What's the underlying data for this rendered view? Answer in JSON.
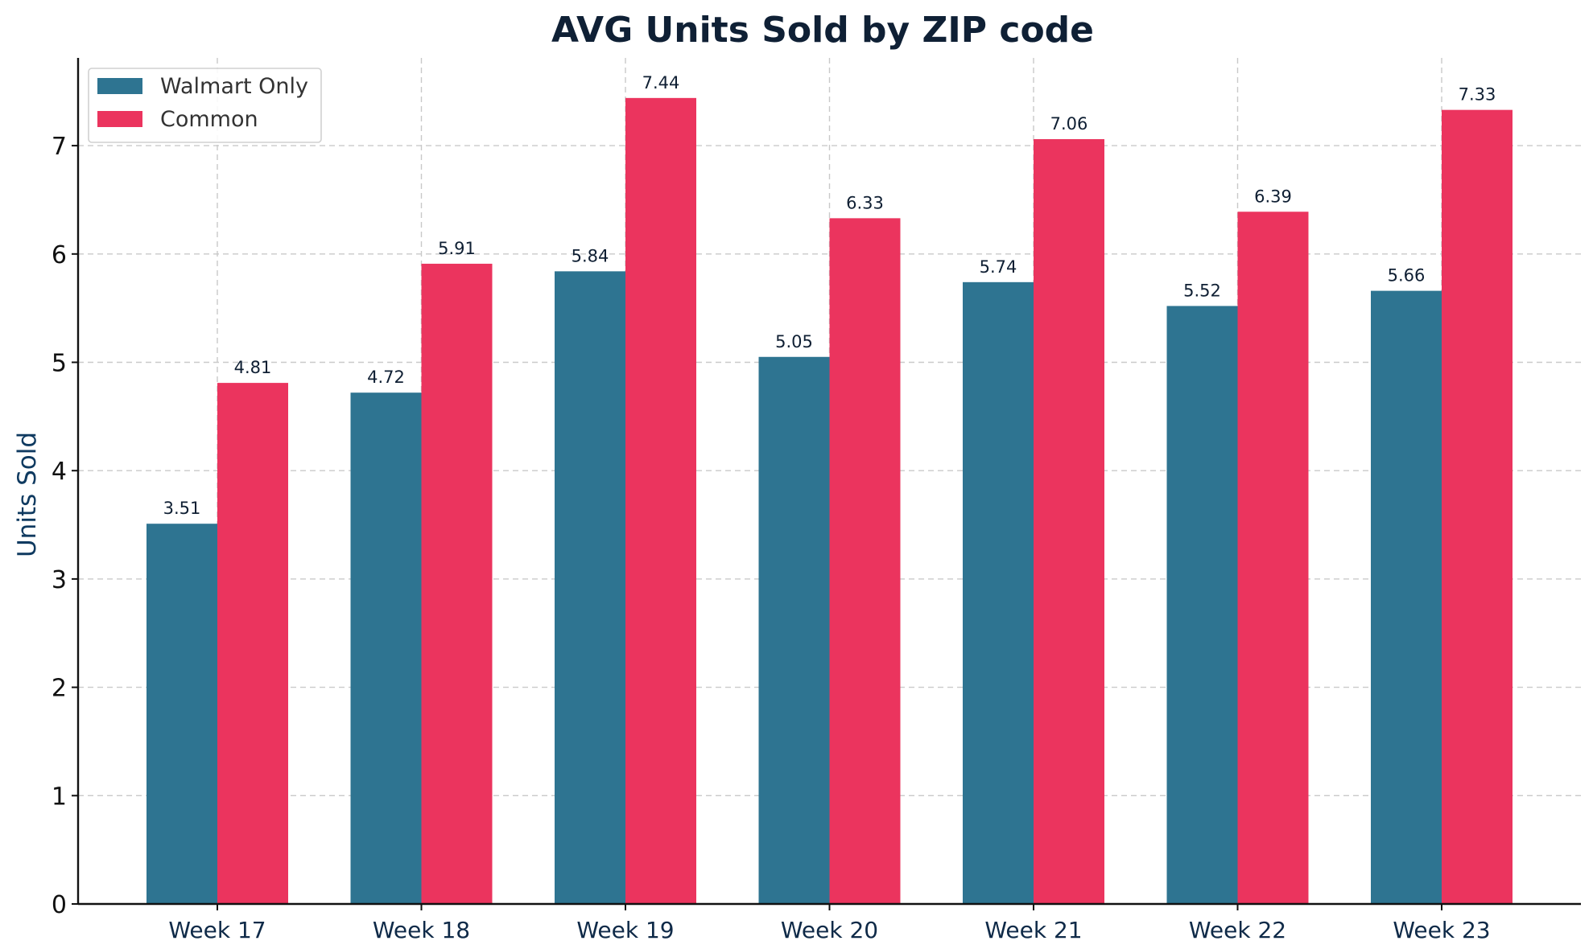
{
  "chart_data": {
    "type": "bar",
    "title": "AVG Units Sold by ZIP code",
    "xlabel": "",
    "ylabel": "Units Sold",
    "categories": [
      "Week 17",
      "Week 18",
      "Week 19",
      "Week 20",
      "Week 21",
      "Week 22",
      "Week 23"
    ],
    "series": [
      {
        "name": "Walmart Only",
        "color": "#2e7491",
        "values": [
          3.51,
          4.72,
          5.84,
          5.05,
          5.74,
          5.52,
          5.66
        ],
        "labels": [
          "3.51",
          "4.72",
          "5.84",
          "5.05",
          "5.74",
          "5.52",
          "5.66"
        ]
      },
      {
        "name": "Common",
        "color": "#eb345e",
        "values": [
          4.81,
          5.91,
          7.44,
          6.33,
          7.06,
          6.39,
          7.33
        ],
        "labels": [
          "4.81",
          "5.91",
          "7.44",
          "6.33",
          "7.06",
          "6.39",
          "7.33"
        ]
      }
    ],
    "ylim": [
      0,
      7.81
    ],
    "yticks": [
      0,
      1,
      2,
      3,
      4,
      5,
      6,
      7
    ],
    "ytick_labels": [
      "0",
      "1",
      "2",
      "3",
      "4",
      "5",
      "6",
      "7"
    ],
    "grid": true,
    "legend_position": "top-left"
  }
}
